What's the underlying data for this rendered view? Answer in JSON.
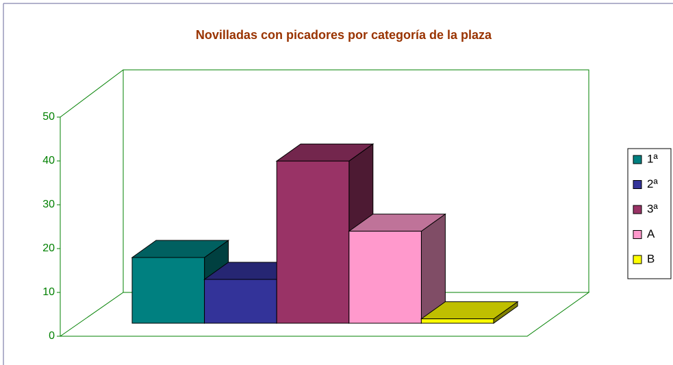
{
  "chart_data": {
    "type": "bar3d",
    "title": "Novilladas con picadores por categoría de la plaza",
    "categories": [
      "1ª",
      "2ª",
      "3ª",
      "A",
      "B"
    ],
    "values": [
      15,
      10,
      37,
      21,
      1
    ],
    "colors": [
      "#008080",
      "#333399",
      "#993366",
      "#ff99cc",
      "#ffff00"
    ],
    "ylim": [
      0,
      50
    ],
    "yticks": [
      0,
      10,
      20,
      30,
      40,
      50
    ],
    "legend": "right"
  }
}
